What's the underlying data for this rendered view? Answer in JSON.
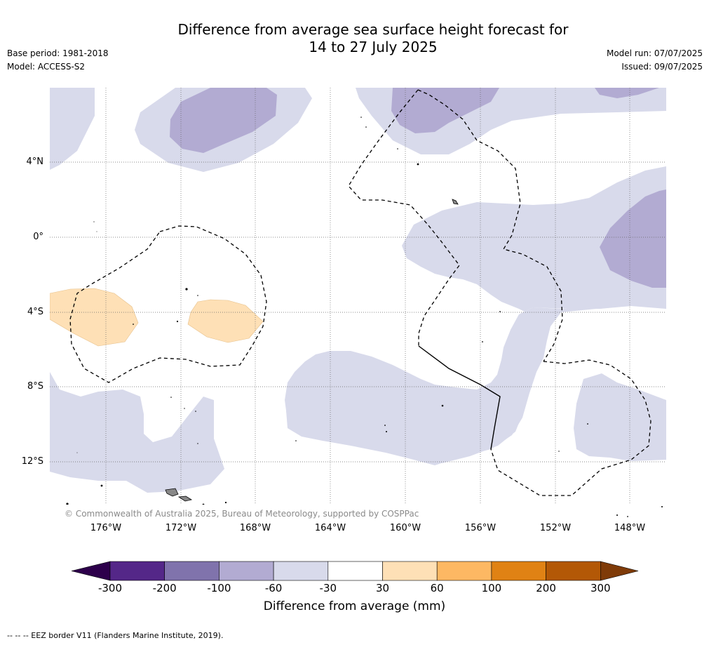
{
  "title_line1": "Difference from average sea surface height forecast for",
  "title_line2": "14 to 27 July 2025",
  "base_period": "Base period: 1981-2018",
  "model": "Model: ACCESS-S2",
  "model_run": "Model run: 07/07/2025",
  "issued": "Issued: 09/07/2025",
  "lat_labels": [
    "4°N",
    "0°",
    "4°S",
    "8°S",
    "12°S"
  ],
  "lon_labels": [
    "176°W",
    "172°W",
    "168°W",
    "164°W",
    "160°W",
    "156°W",
    "152°W",
    "148°W"
  ],
  "copyright": "© Commonwealth of Australia 2025, Bureau of Meteorology, supported by COSPPac",
  "colorbar": {
    "title": "Difference from average (mm)",
    "ticks": [
      "-300",
      "-200",
      "-100",
      "-60",
      "-30",
      "30",
      "60",
      "100",
      "200",
      "300"
    ],
    "colors": [
      "#2d004b",
      "#542788",
      "#8073ac",
      "#b2abd2",
      "#d8daeb",
      "#ffffff",
      "#fee0b6",
      "#fdb863",
      "#e08214",
      "#b35806",
      "#7f3b08"
    ]
  },
  "eez_note": "--  --  -- EEZ border V11 (Flanders Marine Institute, 2019)."
}
